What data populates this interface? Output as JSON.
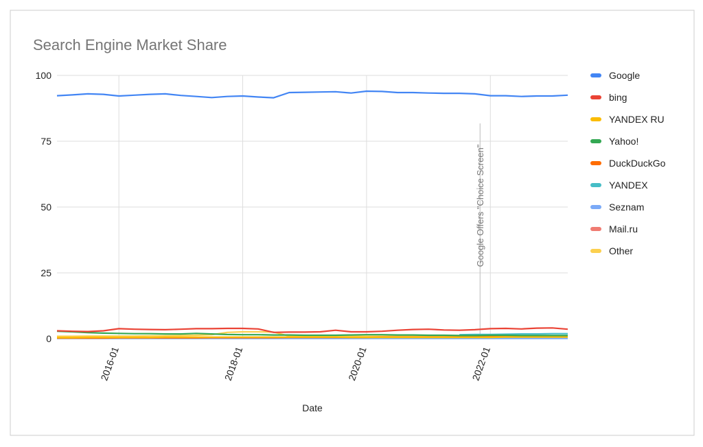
{
  "chart_data": {
    "type": "line",
    "title": "Search Engine Market Share",
    "x_label": "Date",
    "x": [
      "2015-01",
      "2015-04",
      "2015-07",
      "2015-10",
      "2016-01",
      "2016-04",
      "2016-07",
      "2016-10",
      "2017-01",
      "2017-04",
      "2017-07",
      "2017-10",
      "2018-01",
      "2018-04",
      "2018-07",
      "2018-10",
      "2019-01",
      "2019-04",
      "2019-07",
      "2019-10",
      "2020-01",
      "2020-04",
      "2020-07",
      "2020-10",
      "2021-01",
      "2021-04",
      "2021-07",
      "2021-10",
      "2022-01",
      "2022-04",
      "2022-07",
      "2022-10",
      "2023-01",
      "2023-04"
    ],
    "xlim": [
      "2015-01",
      "2023-04"
    ],
    "xticks": [
      "2016-01",
      "2018-01",
      "2020-01",
      "2022-01"
    ],
    "ylim": [
      0,
      100
    ],
    "yticks": [
      0,
      25,
      50,
      75,
      100
    ],
    "grid": true,
    "series": [
      {
        "name": "Google",
        "color": "#4285f4",
        "values": [
          92.3,
          92.6,
          93.0,
          92.8,
          92.2,
          92.5,
          92.8,
          93.0,
          92.4,
          92.0,
          91.6,
          92.0,
          92.2,
          91.8,
          91.5,
          93.5,
          93.6,
          93.7,
          93.8,
          93.3,
          94.0,
          93.9,
          93.5,
          93.5,
          93.3,
          93.2,
          93.2,
          93.0,
          92.3,
          92.3,
          92.0,
          92.2,
          92.2,
          92.5
        ]
      },
      {
        "name": "bing",
        "color": "#ea4335",
        "values": [
          3.0,
          2.8,
          2.7,
          3.0,
          3.8,
          3.6,
          3.5,
          3.4,
          3.6,
          3.8,
          3.8,
          3.9,
          3.9,
          3.7,
          2.4,
          2.5,
          2.5,
          2.6,
          3.2,
          2.6,
          2.6,
          2.8,
          3.2,
          3.5,
          3.6,
          3.3,
          3.2,
          3.4,
          3.8,
          3.9,
          3.7,
          4.0,
          4.1,
          3.6
        ]
      },
      {
        "name": "YANDEX RU",
        "color": "#fbbc04",
        "values": [
          0.4,
          0.4,
          0.5,
          0.5,
          0.5,
          0.5,
          0.5,
          0.6,
          0.6,
          0.6,
          0.6,
          0.6,
          0.6,
          0.6,
          0.6,
          0.6,
          0.6,
          0.6,
          0.6,
          0.5,
          0.5,
          0.5,
          0.5,
          0.5,
          0.5,
          0.5,
          0.5,
          0.5,
          0.5,
          0.6,
          0.6,
          0.6,
          0.6,
          0.6
        ]
      },
      {
        "name": "Yahoo!",
        "color": "#34a853",
        "values": [
          2.8,
          2.6,
          2.3,
          2.1,
          2.0,
          1.9,
          1.9,
          1.8,
          1.8,
          2.0,
          1.8,
          1.6,
          1.5,
          1.5,
          1.4,
          1.4,
          1.3,
          1.3,
          1.3,
          1.4,
          1.5,
          1.5,
          1.4,
          1.4,
          1.3,
          1.3,
          1.2,
          1.2,
          1.3,
          1.3,
          1.2,
          1.2,
          1.2,
          1.2
        ]
      },
      {
        "name": "DuckDuckGo",
        "color": "#ff6d01",
        "values": [
          0.2,
          0.2,
          0.2,
          0.2,
          0.3,
          0.3,
          0.3,
          0.3,
          0.3,
          0.3,
          0.4,
          0.4,
          0.4,
          0.4,
          0.4,
          0.5,
          0.5,
          0.5,
          0.5,
          0.5,
          0.5,
          0.6,
          0.6,
          0.6,
          0.6,
          0.6,
          0.6,
          0.6,
          0.7,
          0.7,
          0.7,
          0.7,
          0.7,
          0.7
        ]
      },
      {
        "name": "YANDEX",
        "color": "#46bdc6",
        "values": [
          null,
          null,
          null,
          null,
          null,
          null,
          null,
          null,
          null,
          null,
          null,
          null,
          null,
          null,
          null,
          null,
          null,
          null,
          null,
          null,
          null,
          null,
          null,
          null,
          null,
          null,
          1.5,
          1.6,
          1.6,
          1.7,
          1.8,
          1.8,
          1.9,
          1.9
        ]
      },
      {
        "name": "Seznam",
        "color": "#7baaf7",
        "values": [
          0.1,
          0.1,
          0.1,
          0.1,
          0.1,
          0.1,
          0.1,
          0.1,
          0.1,
          0.1,
          0.1,
          0.1,
          0.1,
          0.1,
          0.1,
          0.1,
          0.1,
          0.1,
          0.1,
          0.1,
          0.1,
          0.1,
          0.1,
          0.1,
          0.1,
          0.1,
          0.1,
          0.1,
          0.1,
          0.1,
          0.1,
          0.1,
          0.1,
          0.1
        ]
      },
      {
        "name": "Mail.ru",
        "color": "#f07b72",
        "values": [
          0.2,
          0.2,
          0.2,
          0.2,
          0.2,
          0.2,
          0.2,
          0.2,
          0.2,
          0.2,
          0.2,
          0.2,
          0.2,
          0.2,
          0.2,
          0.2,
          0.2,
          0.2,
          0.2,
          0.2,
          0.2,
          0.2,
          0.2,
          0.2,
          0.2,
          0.2,
          0.2,
          0.2,
          0.2,
          0.2,
          0.2,
          0.2,
          0.2,
          0.2
        ]
      },
      {
        "name": "Other",
        "color": "#fcd04f",
        "values": [
          0.9,
          0.9,
          1.0,
          1.0,
          1.0,
          1.0,
          1.1,
          1.1,
          1.2,
          1.3,
          1.5,
          2.4,
          2.6,
          2.6,
          2.5,
          1.0,
          1.0,
          1.0,
          0.9,
          0.9,
          0.9,
          0.9,
          0.9,
          0.9,
          0.9,
          0.9,
          0.9,
          0.8,
          0.8,
          0.8,
          0.8,
          0.8,
          0.8,
          0.8
        ]
      }
    ],
    "annotations": [
      {
        "x": "2021-11",
        "text": "Google Offers \"Choice Screen\""
      }
    ]
  }
}
